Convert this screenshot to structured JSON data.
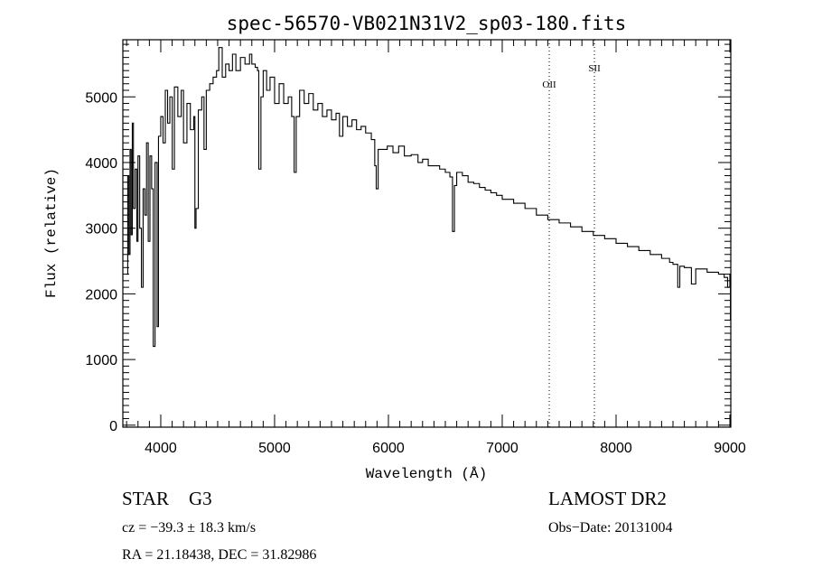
{
  "chart_data": {
    "type": "line",
    "title": "spec-56570-VB021N31V2_sp03-180.fits",
    "xlabel": "Wavelength (Å)",
    "ylabel": "Flux (relative)",
    "xlim": [
      3667,
      9008
    ],
    "ylim": [
      -30,
      5870
    ],
    "xticks": [
      4000,
      5000,
      6000,
      7000,
      8000,
      9000
    ],
    "yticks": [
      0,
      1000,
      2000,
      3000,
      4000,
      5000
    ],
    "x_minor_step": 100,
    "y_minor_step": 100,
    "grid": false,
    "line_color": "#000000",
    "emission_lines": [
      {
        "name": "OII",
        "wavelength": 7413
      },
      {
        "name": "SII",
        "wavelength": 7810
      }
    ],
    "series": [
      {
        "name": "spectrum",
        "points": [
          [
            3700,
            2300
          ],
          [
            3710,
            3800
          ],
          [
            3720,
            2600
          ],
          [
            3730,
            4200
          ],
          [
            3740,
            2900
          ],
          [
            3750,
            4600
          ],
          [
            3760,
            3300
          ],
          [
            3775,
            3900
          ],
          [
            3790,
            2800
          ],
          [
            3800,
            4100
          ],
          [
            3815,
            3000
          ],
          [
            3830,
            2100
          ],
          [
            3845,
            3600
          ],
          [
            3860,
            3200
          ],
          [
            3875,
            4300
          ],
          [
            3890,
            2800
          ],
          [
            3905,
            4100
          ],
          [
            3920,
            3600
          ],
          [
            3934,
            1200
          ],
          [
            3950,
            4000
          ],
          [
            3968,
            1500
          ],
          [
            3980,
            4400
          ],
          [
            4000,
            4700
          ],
          [
            4020,
            4300
          ],
          [
            4040,
            5100
          ],
          [
            4060,
            4600
          ],
          [
            4080,
            5000
          ],
          [
            4101,
            3900
          ],
          [
            4120,
            5150
          ],
          [
            4150,
            4700
          ],
          [
            4180,
            5100
          ],
          [
            4200,
            4300
          ],
          [
            4230,
            4900
          ],
          [
            4260,
            4500
          ],
          [
            4290,
            4700
          ],
          [
            4300,
            3000
          ],
          [
            4310,
            3300
          ],
          [
            4330,
            4800
          ],
          [
            4360,
            5000
          ],
          [
            4380,
            4200
          ],
          [
            4400,
            5100
          ],
          [
            4430,
            5200
          ],
          [
            4460,
            5300
          ],
          [
            4490,
            5400
          ],
          [
            4510,
            5750
          ],
          [
            4540,
            5300
          ],
          [
            4570,
            5500
          ],
          [
            4600,
            5400
          ],
          [
            4630,
            5650
          ],
          [
            4660,
            5400
          ],
          [
            4700,
            5600
          ],
          [
            4740,
            5500
          ],
          [
            4780,
            5650
          ],
          [
            4800,
            5500
          ],
          [
            4830,
            5450
          ],
          [
            4850,
            5400
          ],
          [
            4861,
            3900
          ],
          [
            4880,
            5000
          ],
          [
            4900,
            5400
          ],
          [
            4930,
            5100
          ],
          [
            4960,
            5300
          ],
          [
            5000,
            4900
          ],
          [
            5040,
            5200
          ],
          [
            5080,
            4900
          ],
          [
            5120,
            5000
          ],
          [
            5150,
            4700
          ],
          [
            5172,
            3850
          ],
          [
            5190,
            4700
          ],
          [
            5220,
            5100
          ],
          [
            5260,
            4900
          ],
          [
            5300,
            5050
          ],
          [
            5340,
            4800
          ],
          [
            5380,
            4900
          ],
          [
            5420,
            4700
          ],
          [
            5460,
            4800
          ],
          [
            5500,
            4650
          ],
          [
            5540,
            4750
          ],
          [
            5570,
            4400
          ],
          [
            5600,
            4700
          ],
          [
            5640,
            4550
          ],
          [
            5680,
            4650
          ],
          [
            5720,
            4500
          ],
          [
            5760,
            4550
          ],
          [
            5800,
            4450
          ],
          [
            5850,
            4350
          ],
          [
            5880,
            3950
          ],
          [
            5893,
            3600
          ],
          [
            5910,
            4200
          ],
          [
            5950,
            4200
          ],
          [
            5990,
            4250
          ],
          [
            6040,
            4150
          ],
          [
            6090,
            4250
          ],
          [
            6140,
            4100
          ],
          [
            6200,
            4120
          ],
          [
            6260,
            4000
          ],
          [
            6300,
            4050
          ],
          [
            6350,
            3950
          ],
          [
            6400,
            3950
          ],
          [
            6450,
            3900
          ],
          [
            6500,
            3850
          ],
          [
            6540,
            3780
          ],
          [
            6563,
            2950
          ],
          [
            6580,
            3650
          ],
          [
            6600,
            3850
          ],
          [
            6650,
            3800
          ],
          [
            6700,
            3700
          ],
          [
            6750,
            3680
          ],
          [
            6800,
            3620
          ],
          [
            6850,
            3580
          ],
          [
            6900,
            3540
          ],
          [
            6950,
            3500
          ],
          [
            7000,
            3440
          ],
          [
            7100,
            3380
          ],
          [
            7200,
            3300
          ],
          [
            7300,
            3200
          ],
          [
            7400,
            3130
          ],
          [
            7500,
            3080
          ],
          [
            7600,
            3020
          ],
          [
            7700,
            2950
          ],
          [
            7800,
            2890
          ],
          [
            7900,
            2840
          ],
          [
            8000,
            2770
          ],
          [
            8100,
            2720
          ],
          [
            8200,
            2660
          ],
          [
            8300,
            2600
          ],
          [
            8400,
            2540
          ],
          [
            8470,
            2480
          ],
          [
            8500,
            2450
          ],
          [
            8542,
            2100
          ],
          [
            8560,
            2420
          ],
          [
            8600,
            2400
          ],
          [
            8662,
            2150
          ],
          [
            8700,
            2380
          ],
          [
            8800,
            2330
          ],
          [
            8900,
            2300
          ],
          [
            8950,
            2250
          ],
          [
            8980,
            2100
          ],
          [
            9000,
            2300
          ],
          [
            9005,
            1600
          ]
        ]
      }
    ]
  },
  "info": {
    "object_class": "STAR",
    "subclass": "G3",
    "survey": "LAMOST DR2",
    "redshift": "cz = −39.3 ± 18.3 km/s",
    "obs_date": "Obs−Date: 20131004",
    "coords": "RA =  21.18438, DEC =  31.82986"
  }
}
